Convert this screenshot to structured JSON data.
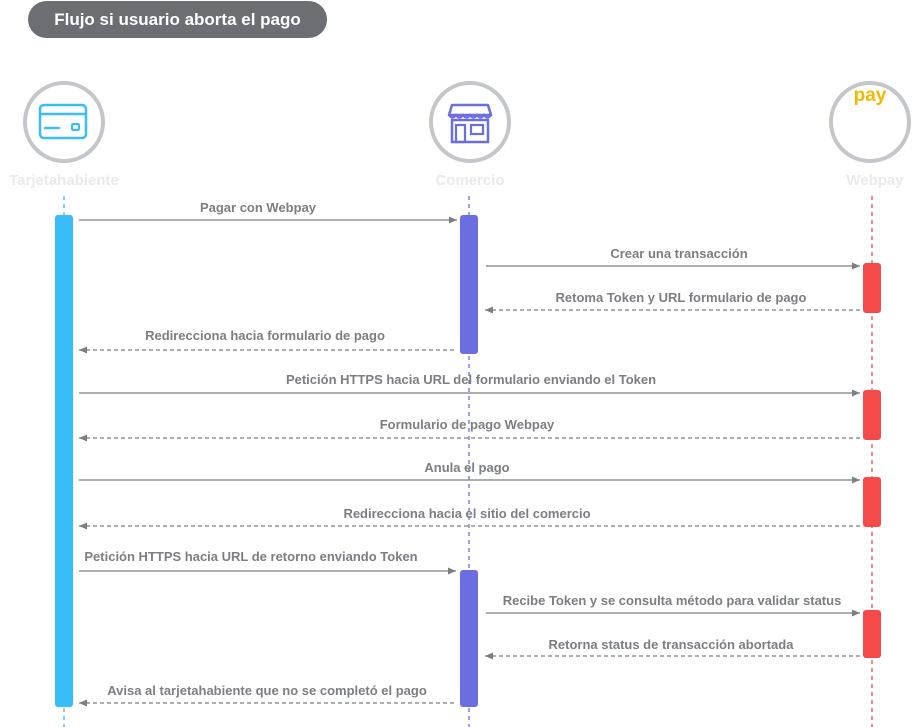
{
  "title": "Flujo si usuario aborta el pago",
  "actors": [
    {
      "name": "Tarjetahabiente",
      "icon": "credit-card-icon",
      "color": "#38bdf8"
    },
    {
      "name": "Comercio",
      "icon": "storefront-icon",
      "color": "#6b6ee0"
    },
    {
      "name": "Webpay",
      "icon": "webpay-logo",
      "color": "#f44a4a"
    }
  ],
  "logo_text": "pay",
  "messages": [
    {
      "text": "Pagar con Webpay",
      "from": 0,
      "to": 1,
      "style": "solid"
    },
    {
      "text": "Crear una transacción",
      "from": 1,
      "to": 2,
      "style": "solid"
    },
    {
      "text": "Retoma Token y URL formulario de pago",
      "from": 2,
      "to": 1,
      "style": "dashed"
    },
    {
      "text": "Redirecciona hacia formulario de pago",
      "from": 1,
      "to": 0,
      "style": "dashed"
    },
    {
      "text": "Petición HTTPS hacia URL del formulario enviando el Token",
      "from": 0,
      "to": 2,
      "style": "solid"
    },
    {
      "text": "Formulario de pago Webpay",
      "from": 2,
      "to": 0,
      "style": "dashed"
    },
    {
      "text": "Anula el pago",
      "from": 0,
      "to": 2,
      "style": "solid"
    },
    {
      "text": "Redirecciona hacia el sitio del comercio",
      "from": 2,
      "to": 0,
      "style": "dashed"
    },
    {
      "text": "Petición HTTPS hacia URL de retorno enviando Token",
      "from": 0,
      "to": 1,
      "style": "solid"
    },
    {
      "text": "Recibe Token y se consulta método para validar status",
      "from": 1,
      "to": 2,
      "style": "solid"
    },
    {
      "text": "Retorna status de transacción abortada",
      "from": 2,
      "to": 1,
      "style": "dashed"
    },
    {
      "text": "Avisa al tarjetahabiente que no se completó el pago",
      "from": 1,
      "to": 0,
      "style": "dashed"
    }
  ]
}
